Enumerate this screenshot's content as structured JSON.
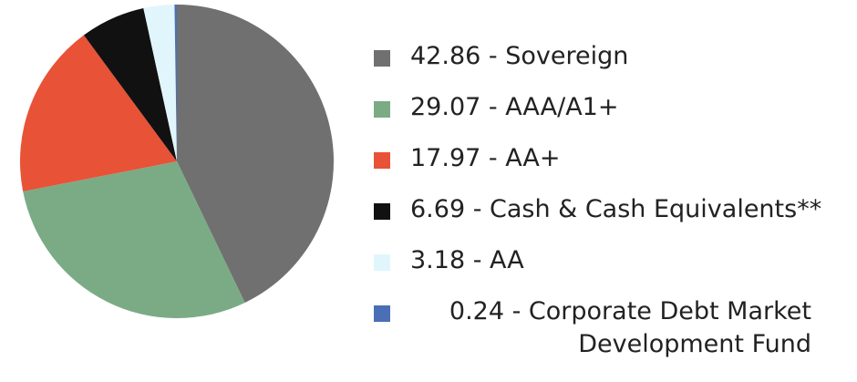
{
  "chart_data": {
    "type": "pie",
    "categories": [
      "42.86 - Sovereign",
      "29.07 - AAA/A1+",
      "17.97 - AA+",
      "6.69 - Cash & Cash Equivalents**",
      "3.18 - AA",
      "0.24 - Corporate Debt Market Development Fund"
    ],
    "values": [
      42.86,
      29.07,
      17.97,
      6.69,
      3.18,
      0.24
    ],
    "colors": [
      "#707070",
      "#7aab85",
      "#e85237",
      "#111111",
      "#e1f6fc",
      "#4a6fb5"
    ]
  }
}
